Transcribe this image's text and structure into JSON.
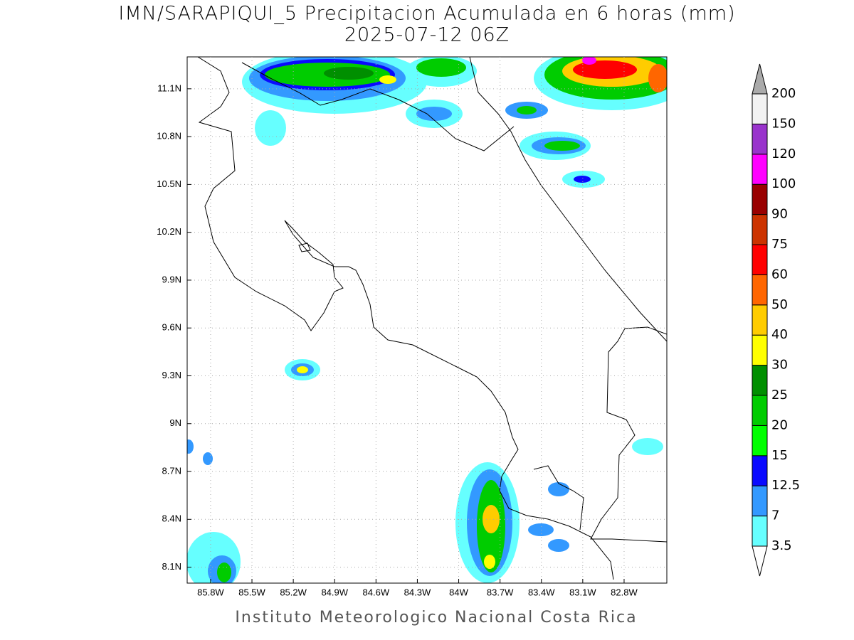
{
  "header": {
    "title": "IMN/SARAPIQUI_5 Precipitacion Acumulada en 6 horas (mm)",
    "subtitle": "2025-07-12 06Z"
  },
  "map": {
    "lonlim": [
      -85.97,
      -82.49
    ],
    "latlim": [
      8.0,
      11.3
    ],
    "lon_ticks": [
      {
        "value": -85.8,
        "label": "85.8W"
      },
      {
        "value": -85.5,
        "label": "85.5W"
      },
      {
        "value": -85.2,
        "label": "85.2W"
      },
      {
        "value": -84.9,
        "label": "84.9W"
      },
      {
        "value": -84.6,
        "label": "84.6W"
      },
      {
        "value": -84.3,
        "label": "84.3W"
      },
      {
        "value": -84.0,
        "label": "84W"
      },
      {
        "value": -83.7,
        "label": "83.7W"
      },
      {
        "value": -83.4,
        "label": "83.4W"
      },
      {
        "value": -83.1,
        "label": "83.1W"
      },
      {
        "value": -82.8,
        "label": "82.8W"
      }
    ],
    "lat_ticks": [
      {
        "value": 8.1,
        "label": "8.1N"
      },
      {
        "value": 8.4,
        "label": "8.4N"
      },
      {
        "value": 8.7,
        "label": "8.7N"
      },
      {
        "value": 9.0,
        "label": "9N"
      },
      {
        "value": 9.3,
        "label": "9.3N"
      },
      {
        "value": 9.6,
        "label": "9.6N"
      },
      {
        "value": 9.9,
        "label": "9.9N"
      },
      {
        "value": 10.2,
        "label": "10.2N"
      },
      {
        "value": 10.5,
        "label": "10.5N"
      },
      {
        "value": 10.8,
        "label": "10.8N"
      },
      {
        "value": 11.1,
        "label": "11.1N"
      }
    ],
    "grid": true
  },
  "colorbar": {
    "levels": [
      3.5,
      7,
      12.5,
      15,
      20,
      25,
      30,
      40,
      50,
      60,
      75,
      90,
      100,
      120,
      150,
      200
    ],
    "colors": [
      "#66ffff",
      "#3399ff",
      "#0a0aff",
      "#00ff00",
      "#00cc00",
      "#008f00",
      "#ffff00",
      "#ffcc00",
      "#ff6600",
      "#ff0000",
      "#cc3300",
      "#990000",
      "#ff00ff",
      "#9933cc",
      "#f2f2f2"
    ],
    "under_color": "#ffffff",
    "over_color": "#aaaaaa"
  },
  "footer": {
    "text": "Instituto Meteorologico Nacional Costa Rica"
  }
}
